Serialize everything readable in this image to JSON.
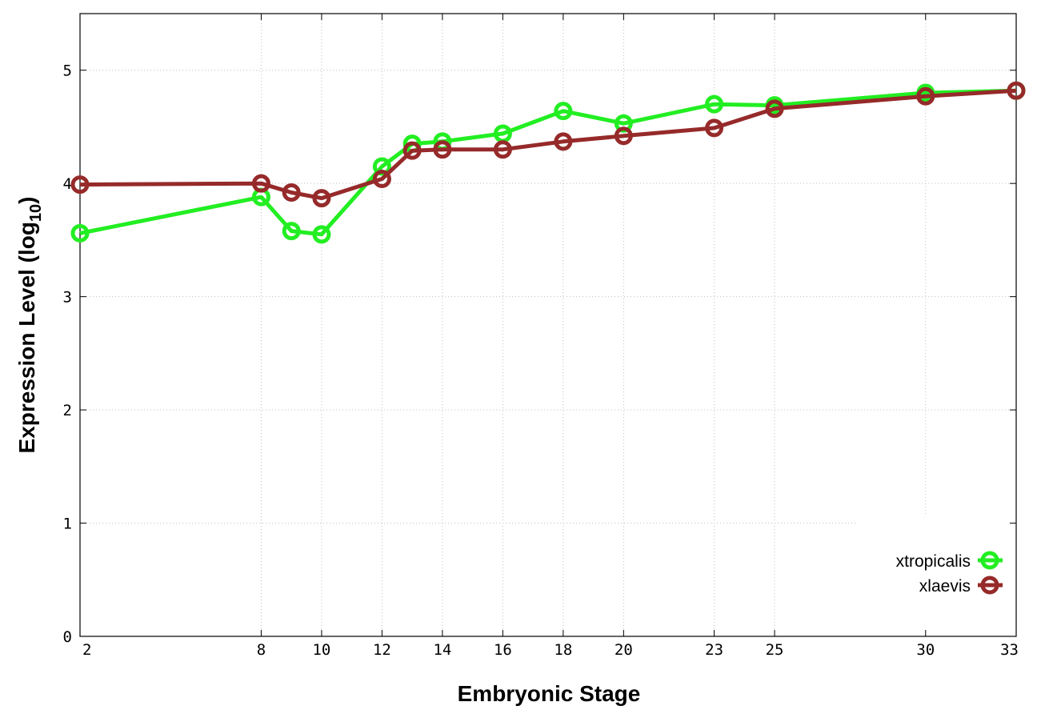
{
  "chart_data": {
    "type": "line",
    "xlabel": "Embryonic Stage",
    "ylabel_main": "Expression Level (log",
    "ylabel_sub": "10",
    "ylabel_close": ")",
    "x_ticks": [
      2,
      8,
      10,
      12,
      14,
      16,
      18,
      20,
      23,
      25,
      30,
      33
    ],
    "x_tick_labels": [
      "2",
      "8",
      "10",
      "12",
      "14",
      "16",
      "18",
      "20",
      "23",
      "25",
      "30",
      "33"
    ],
    "y_ticks": [
      0,
      1,
      2,
      3,
      4,
      5
    ],
    "y_tick_labels": [
      "0",
      "1",
      "2",
      "3",
      "4",
      "5"
    ],
    "xlim": [
      2,
      33
    ],
    "ylim": [
      0,
      5.5
    ],
    "grid": true,
    "legend_position": "bottom-right",
    "series": [
      {
        "name": "xtropicalis",
        "color": "#22ee22",
        "x": [
          2,
          8,
          9,
          10,
          12,
          13,
          14,
          16,
          18,
          20,
          23,
          25,
          30,
          33
        ],
        "y": [
          3.56,
          3.88,
          3.58,
          3.55,
          4.15,
          4.35,
          4.37,
          4.44,
          4.64,
          4.53,
          4.7,
          4.69,
          4.8,
          4.82
        ]
      },
      {
        "name": "xlaevis",
        "color": "#962a2a",
        "x": [
          2,
          8,
          9,
          10,
          12,
          13,
          14,
          16,
          18,
          20,
          23,
          25,
          30,
          33
        ],
        "y": [
          3.99,
          4.0,
          3.92,
          3.87,
          4.04,
          4.29,
          4.3,
          4.3,
          4.37,
          4.42,
          4.49,
          4.66,
          4.77,
          4.82
        ]
      }
    ]
  }
}
